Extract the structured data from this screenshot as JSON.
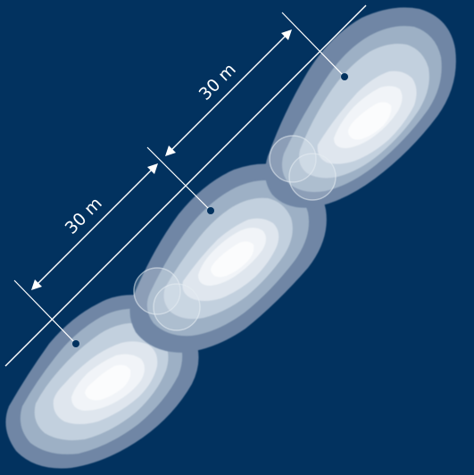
{
  "colors": {
    "background": "#02325f",
    "lines": "#ffffff",
    "point": "#02325f",
    "zones": [
      "#6f86a5",
      "#9db0c5",
      "#c2d0de",
      "#dfe6ee",
      "#f1f4f8",
      "#fbfcfd"
    ]
  },
  "dimensions": {
    "upper_label": "30 m",
    "lower_label": "30 m"
  },
  "points": [
    "point-1",
    "point-2",
    "point-3"
  ]
}
